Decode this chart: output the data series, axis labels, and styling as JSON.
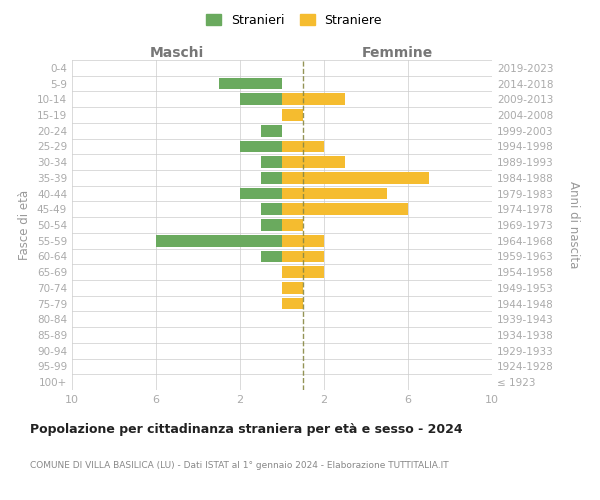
{
  "age_groups": [
    "100+",
    "95-99",
    "90-94",
    "85-89",
    "80-84",
    "75-79",
    "70-74",
    "65-69",
    "60-64",
    "55-59",
    "50-54",
    "45-49",
    "40-44",
    "35-39",
    "30-34",
    "25-29",
    "20-24",
    "15-19",
    "10-14",
    "5-9",
    "0-4"
  ],
  "birth_years": [
    "≤ 1923",
    "1924-1928",
    "1929-1933",
    "1934-1938",
    "1939-1943",
    "1944-1948",
    "1949-1953",
    "1954-1958",
    "1959-1963",
    "1964-1968",
    "1969-1973",
    "1974-1978",
    "1979-1983",
    "1984-1988",
    "1989-1993",
    "1994-1998",
    "1999-2003",
    "2004-2008",
    "2009-2013",
    "2014-2018",
    "2019-2023"
  ],
  "maschi": [
    0,
    0,
    0,
    0,
    0,
    0,
    0,
    0,
    1,
    6,
    1,
    1,
    2,
    1,
    1,
    2,
    1,
    0,
    2,
    3,
    0
  ],
  "femmine": [
    0,
    0,
    0,
    0,
    0,
    1,
    1,
    2,
    2,
    2,
    1,
    6,
    5,
    7,
    3,
    2,
    0,
    1,
    3,
    0,
    0
  ],
  "stranieri_color": "#6aaa5e",
  "straniere_color": "#f5bc2f",
  "background_color": "#ffffff",
  "grid_color": "#cccccc",
  "dashed_line_color": "#888844",
  "title": "Popolazione per cittadinanza straniera per età e sesso - 2024",
  "subtitle": "COMUNE DI VILLA BASILICA (LU) - Dati ISTAT al 1° gennaio 2024 - Elaborazione TUTTITALIA.IT",
  "xlabel_left": "Maschi",
  "xlabel_right": "Femmine",
  "ylabel_left": "Fasce di età",
  "ylabel_right": "Anni di nascita",
  "xlim": 10,
  "xtick_positions": [
    -10,
    -6,
    -2,
    2,
    6,
    10
  ],
  "xtick_labels": [
    "10",
    "6",
    "2",
    "2",
    "6",
    "10"
  ],
  "legend_label_m": "Stranieri",
  "legend_label_f": "Straniere"
}
